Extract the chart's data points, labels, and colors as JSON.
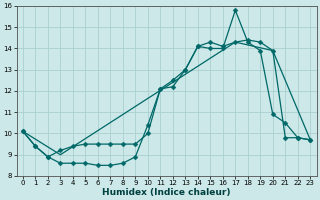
{
  "xlabel": "Humidex (Indice chaleur)",
  "ylabel": "",
  "bg_color": "#cce8e8",
  "grid_color": "#aad0d0",
  "line_color": "#006868",
  "xlim": [
    -0.5,
    23.5
  ],
  "ylim": [
    8,
    16
  ],
  "yticks": [
    8,
    9,
    10,
    11,
    12,
    13,
    14,
    15,
    16
  ],
  "xticks": [
    0,
    1,
    2,
    3,
    4,
    5,
    6,
    7,
    8,
    9,
    10,
    11,
    12,
    13,
    14,
    15,
    16,
    17,
    18,
    19,
    20,
    21,
    22,
    23
  ],
  "line1_x": [
    0,
    1,
    2,
    3,
    4,
    5,
    6,
    7,
    8,
    9,
    10,
    11,
    12,
    13,
    14,
    15,
    16,
    17,
    18,
    19,
    20,
    21,
    22,
    23
  ],
  "line1_y": [
    10.1,
    9.4,
    8.9,
    8.6,
    8.6,
    8.6,
    8.5,
    8.5,
    8.6,
    8.9,
    10.4,
    12.1,
    12.2,
    13.0,
    14.1,
    14.0,
    14.0,
    15.8,
    14.3,
    13.9,
    10.9,
    10.5,
    9.8,
    9.7
  ],
  "line2_x": [
    0,
    1,
    2,
    3,
    4,
    5,
    6,
    7,
    8,
    9,
    10,
    11,
    12,
    13,
    14,
    15,
    16,
    17,
    18,
    19,
    20,
    21,
    22,
    23
  ],
  "line2_y": [
    10.1,
    9.4,
    8.9,
    9.2,
    9.4,
    9.5,
    9.5,
    9.5,
    9.5,
    9.5,
    10.0,
    12.1,
    12.5,
    13.0,
    14.1,
    14.3,
    14.1,
    14.3,
    14.4,
    14.3,
    13.9,
    9.8,
    9.8,
    9.7
  ],
  "line3_x": [
    0,
    3,
    17,
    20,
    23
  ],
  "line3_y": [
    10.1,
    9.0,
    14.3,
    13.9,
    9.7
  ],
  "marker_size": 2.5,
  "line_width": 0.9
}
